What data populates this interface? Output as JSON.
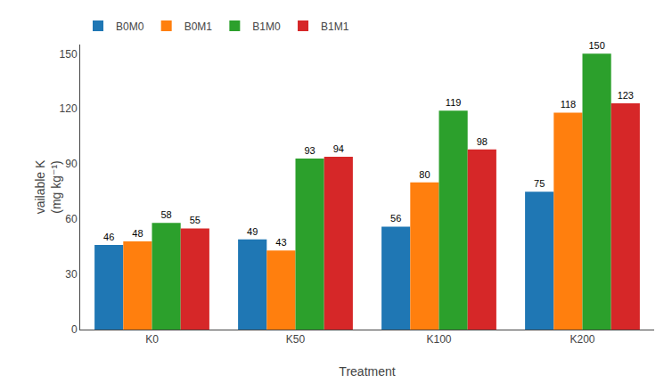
{
  "chart_data": {
    "type": "bar",
    "categories": [
      "K0",
      "K50",
      "K100",
      "K200"
    ],
    "series": [
      {
        "name": "B0M0",
        "values": [
          46,
          49,
          56,
          75
        ]
      },
      {
        "name": "B0M1",
        "values": [
          48,
          43,
          80,
          118
        ]
      },
      {
        "name": "B1M0",
        "values": [
          58,
          93,
          119,
          150
        ]
      },
      {
        "name": "B1M1",
        "values": [
          55,
          94,
          98,
          123
        ]
      }
    ],
    "xlabel": "Treatment",
    "ylabel": [
      "vailable K",
      "(mg kg⁻¹)"
    ],
    "ylim": [
      0,
      155
    ],
    "yticks": [
      0,
      30,
      60,
      90,
      120,
      150
    ],
    "grid": false,
    "legend": "upper left",
    "data_labels": true
  }
}
